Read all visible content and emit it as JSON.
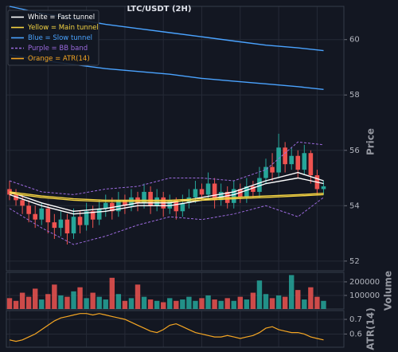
{
  "chart_data": {
    "type": "candlestick",
    "title": "LTC/USDT (2H)",
    "ylabel": "Price",
    "ylim": [
      51.65,
      61.2
    ],
    "yticks": [
      52,
      54,
      56,
      58,
      60
    ],
    "grid": true,
    "legend": "upper left",
    "up_color": "#26a69a",
    "down_color": "#ef5350",
    "open": [
      54.6,
      54.4,
      54.2,
      54.0,
      53.7,
      53.5,
      53.9,
      53.4,
      53.2,
      53.5,
      53.0,
      53.6,
      53.3,
      53.8,
      53.5,
      53.9,
      54.1,
      53.8,
      54.2,
      54.0,
      54.3,
      54.1,
      54.5,
      54.0,
      54.3,
      53.9,
      54.2,
      53.8,
      54.1,
      54.3,
      54.6,
      54.4,
      54.8,
      54.2,
      54.5,
      54.1,
      54.6,
      54.3,
      54.7,
      54.5,
      55.0,
      55.4,
      55.2,
      56.1,
      55.5,
      55.8,
      55.3,
      55.9,
      55.1,
      54.6
    ],
    "high": [
      54.9,
      54.6,
      54.4,
      54.2,
      54.0,
      54.1,
      54.0,
      53.7,
      53.8,
      53.7,
      53.9,
      53.8,
      54.1,
      54.0,
      54.2,
      54.4,
      54.3,
      54.5,
      54.4,
      54.6,
      54.5,
      54.8,
      54.7,
      54.6,
      54.5,
      54.4,
      54.3,
      54.4,
      54.6,
      54.9,
      54.8,
      55.2,
      55.0,
      54.8,
      54.7,
      54.9,
      54.8,
      55.0,
      54.9,
      55.4,
      55.7,
      55.9,
      56.6,
      56.3,
      56.1,
      56.0,
      56.2,
      56.0,
      55.3,
      54.9
    ],
    "low": [
      54.2,
      54.0,
      53.7,
      53.4,
      53.2,
      53.3,
      53.0,
      52.8,
      52.9,
      52.6,
      52.8,
      53.0,
      53.1,
      53.2,
      53.3,
      53.6,
      53.5,
      53.6,
      53.7,
      53.8,
      53.8,
      53.9,
      53.7,
      53.8,
      53.6,
      53.7,
      53.5,
      53.6,
      53.9,
      54.1,
      54.2,
      54.2,
      53.9,
      54.0,
      53.9,
      53.9,
      54.1,
      54.1,
      54.3,
      54.3,
      54.8,
      54.9,
      55.0,
      55.2,
      55.3,
      55.0,
      55.1,
      54.8,
      54.4,
      54.4
    ],
    "close": [
      54.4,
      54.2,
      54.0,
      53.7,
      53.5,
      53.9,
      53.4,
      53.2,
      53.5,
      53.0,
      53.6,
      53.3,
      53.8,
      53.5,
      53.9,
      54.1,
      53.8,
      54.2,
      54.0,
      54.3,
      54.1,
      54.5,
      54.0,
      54.3,
      53.9,
      54.2,
      53.8,
      54.1,
      54.3,
      54.6,
      54.4,
      54.8,
      54.2,
      54.5,
      54.1,
      54.6,
      54.3,
      54.7,
      54.5,
      55.0,
      55.4,
      55.2,
      56.1,
      55.5,
      55.8,
      55.3,
      55.9,
      55.1,
      54.6,
      54.7
    ],
    "overlay_x": [
      0,
      5,
      10,
      15,
      20,
      25,
      30,
      35,
      40,
      45,
      49
    ],
    "overlays": [
      {
        "name": "White = Fast tunnel",
        "color": "#ffffff",
        "dashed": false,
        "lines": [
          [
            54.5,
            54.1,
            53.8,
            53.9,
            54.1,
            54.1,
            54.3,
            54.5,
            54.9,
            55.2,
            54.9
          ],
          [
            54.4,
            54.0,
            53.7,
            53.8,
            54.0,
            54.0,
            54.2,
            54.4,
            54.8,
            55.0,
            54.8
          ]
        ]
      },
      {
        "name": "Yellow = Main tunnel",
        "color": "#f5d442",
        "dashed": false,
        "lines": [
          [
            54.5,
            54.35,
            54.25,
            54.2,
            54.2,
            54.2,
            54.25,
            54.3,
            54.35,
            54.4,
            54.45
          ],
          [
            54.45,
            54.3,
            54.2,
            54.15,
            54.15,
            54.15,
            54.2,
            54.25,
            54.3,
            54.35,
            54.4
          ]
        ]
      },
      {
        "name": "Blue = Slow tunnel",
        "color": "#4aa3ff",
        "dashed": false,
        "lines": [
          [
            61.2,
            60.95,
            60.75,
            60.55,
            60.4,
            60.25,
            60.1,
            59.95,
            59.8,
            59.7,
            59.6
          ],
          [
            59.45,
            59.25,
            59.1,
            58.95,
            58.85,
            58.75,
            58.6,
            58.5,
            58.4,
            58.3,
            58.2
          ]
        ]
      },
      {
        "name": "Purple = BB band",
        "color": "#9c6ade",
        "dashed": true,
        "lines": [
          [
            54.9,
            54.5,
            54.4,
            54.6,
            54.7,
            55.0,
            55.0,
            54.9,
            55.3,
            56.3,
            56.2
          ],
          [
            53.9,
            53.2,
            52.6,
            52.9,
            53.3,
            53.6,
            53.5,
            53.7,
            54.0,
            53.6,
            54.3
          ]
        ]
      }
    ],
    "volume": {
      "ylabel": "Volume",
      "ylim": [
        0,
        270000
      ],
      "yticks": [
        100000,
        200000
      ],
      "values": [
        80000,
        60000,
        120000,
        90000,
        150000,
        70000,
        110000,
        180000,
        100000,
        90000,
        130000,
        160000,
        80000,
        120000,
        90000,
        70000,
        230000,
        110000,
        60000,
        80000,
        180000,
        90000,
        70000,
        60000,
        50000,
        80000,
        60000,
        70000,
        90000,
        60000,
        80000,
        100000,
        70000,
        60000,
        80000,
        60000,
        90000,
        70000,
        120000,
        210000,
        110000,
        80000,
        100000,
        90000,
        250000,
        140000,
        70000,
        160000,
        90000,
        60000
      ]
    },
    "atr": {
      "name": "Orange = ATR(14)",
      "ylabel": "ATR(14)",
      "color": "#f5a623",
      "ylim": [
        0.51,
        0.76
      ],
      "yticks": [
        0.6,
        0.7
      ],
      "values": [
        0.56,
        0.55,
        0.56,
        0.58,
        0.6,
        0.63,
        0.66,
        0.69,
        0.71,
        0.72,
        0.73,
        0.74,
        0.74,
        0.73,
        0.74,
        0.73,
        0.72,
        0.71,
        0.7,
        0.68,
        0.66,
        0.64,
        0.62,
        0.61,
        0.63,
        0.66,
        0.67,
        0.65,
        0.63,
        0.61,
        0.6,
        0.59,
        0.58,
        0.58,
        0.59,
        0.58,
        0.57,
        0.58,
        0.59,
        0.61,
        0.64,
        0.65,
        0.63,
        0.62,
        0.61,
        0.61,
        0.6,
        0.58,
        0.57,
        0.56
      ]
    }
  }
}
